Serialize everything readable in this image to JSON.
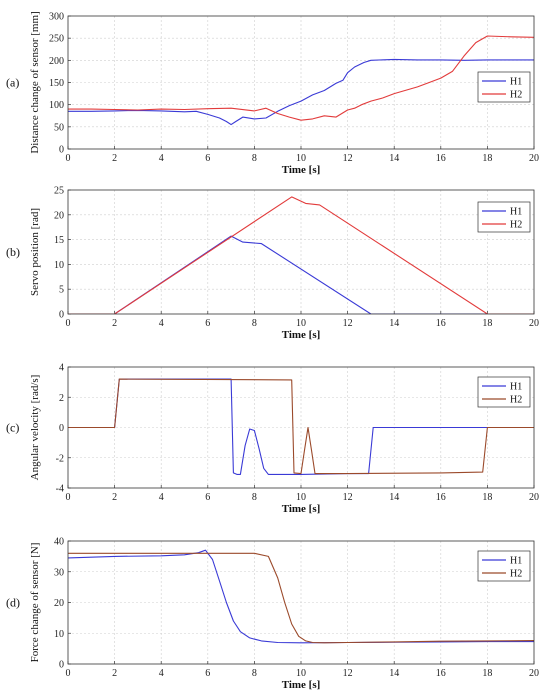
{
  "chart_data": [
    {
      "type": "line",
      "panel_label": "(a)",
      "xlabel": "Time [s]",
      "ylabel": "Distance change of sensor [mm]",
      "xlim": [
        0,
        20
      ],
      "ylim": [
        0,
        300
      ],
      "xticks": [
        "0",
        "2",
        "4",
        "6",
        "8",
        "10",
        "12",
        "14",
        "16",
        "18",
        "20"
      ],
      "yticks": [
        "0",
        "50",
        "100",
        "150",
        "200",
        "250",
        "300"
      ],
      "grid": true,
      "legend_position": "right-middle",
      "series": [
        {
          "name": "H1",
          "color": "#3a3ad6",
          "x": [
            0,
            1,
            2,
            3,
            4,
            5,
            5.5,
            6,
            6.5,
            6.8,
            7.0,
            7.2,
            7.5,
            8.0,
            8.5,
            9.0,
            9.5,
            10.0,
            10.5,
            11.0,
            11.5,
            11.8,
            12.0,
            12.3,
            12.7,
            13.0,
            14.0,
            15.0,
            16.0,
            17.0,
            18.0,
            19.0,
            20.0
          ],
          "y": [
            85,
            85,
            86,
            87,
            86,
            84,
            85,
            78,
            70,
            62,
            55,
            62,
            72,
            68,
            70,
            85,
            98,
            108,
            122,
            132,
            148,
            155,
            172,
            185,
            195,
            200,
            202,
            201,
            201,
            200,
            201,
            201,
            201
          ]
        },
        {
          "name": "H2",
          "color": "#e23b3b",
          "x": [
            0,
            1,
            2,
            3,
            4,
            5,
            6,
            7,
            8,
            8.5,
            9,
            9.5,
            10,
            10.5,
            11,
            11.5,
            12,
            12.3,
            12.6,
            13,
            13.5,
            14,
            15,
            15.5,
            16,
            16.5,
            17,
            17.5,
            18,
            19,
            20
          ],
          "y": [
            90,
            90,
            89,
            88,
            90,
            89,
            91,
            92,
            86,
            92,
            80,
            72,
            65,
            68,
            75,
            72,
            88,
            92,
            100,
            108,
            115,
            125,
            140,
            150,
            160,
            175,
            210,
            240,
            255,
            253,
            252
          ]
        }
      ]
    },
    {
      "type": "line",
      "panel_label": "(b)",
      "xlabel": "Time [s]",
      "ylabel": "Servo position [rad]",
      "xlim": [
        0,
        20
      ],
      "ylim": [
        0,
        25
      ],
      "xticks": [
        "0",
        "2",
        "4",
        "6",
        "8",
        "10",
        "12",
        "14",
        "16",
        "18",
        "20"
      ],
      "yticks": [
        "0",
        "5",
        "10",
        "15",
        "20",
        "25"
      ],
      "grid": true,
      "legend_position": "top-right",
      "series": [
        {
          "name": "H1",
          "color": "#3a3ad6",
          "x": [
            0,
            2,
            7.0,
            7.5,
            8.3,
            13.0,
            20
          ],
          "y": [
            0,
            0,
            15.7,
            14.5,
            14.2,
            0,
            0
          ]
        },
        {
          "name": "H2",
          "color": "#e23b3b",
          "x": [
            0,
            2,
            9.6,
            10.2,
            10.8,
            18.0,
            20
          ],
          "y": [
            0,
            0,
            23.6,
            22.3,
            22.0,
            0,
            0
          ]
        }
      ]
    },
    {
      "type": "line",
      "panel_label": "(c)",
      "xlabel": "Time [s]",
      "ylabel": "Angular velocity [rad/s]",
      "xlim": [
        0,
        20
      ],
      "ylim": [
        -4,
        4
      ],
      "xticks": [
        "0",
        "2",
        "4",
        "6",
        "8",
        "10",
        "12",
        "14",
        "16",
        "18",
        "20"
      ],
      "yticks": [
        "-4",
        "-2",
        "0",
        "2",
        "4"
      ],
      "grid": true,
      "legend_position": "top-right",
      "series": [
        {
          "name": "H1",
          "color": "#3a3ad6",
          "x": [
            0,
            2.0,
            2.2,
            7.0,
            7.1,
            7.25,
            7.4,
            7.6,
            7.8,
            8.0,
            8.2,
            8.4,
            8.6,
            8.8,
            9.0,
            10,
            12,
            12.9,
            13.1,
            20
          ],
          "y": [
            0,
            0,
            3.2,
            3.2,
            -3.0,
            -3.1,
            -3.1,
            -1.2,
            -0.1,
            -0.2,
            -1.4,
            -2.7,
            -3.1,
            -3.1,
            -3.1,
            -3.1,
            -3.05,
            -3.05,
            0,
            0
          ]
        },
        {
          "name": "H2",
          "color": "#9b4a2b",
          "x": [
            0,
            2.0,
            2.2,
            9.6,
            9.7,
            10.0,
            10.15,
            10.3,
            10.45,
            10.6,
            10.7,
            12,
            16,
            17.8,
            18.0,
            20
          ],
          "y": [
            0,
            0,
            3.2,
            3.15,
            -3.0,
            -3.05,
            -1.5,
            0.0,
            -1.5,
            -3.05,
            -3.05,
            -3.05,
            -3.0,
            -2.95,
            0,
            0
          ]
        }
      ]
    },
    {
      "type": "line",
      "panel_label": "(d)",
      "xlabel": "Time [s]",
      "ylabel": "Force change of sensor [N]",
      "xlim": [
        0,
        20
      ],
      "ylim": [
        0,
        40
      ],
      "xticks": [
        "0",
        "2",
        "4",
        "6",
        "8",
        "10",
        "12",
        "14",
        "16",
        "18",
        "20"
      ],
      "yticks": [
        "0",
        "10",
        "20",
        "30",
        "40"
      ],
      "grid": true,
      "legend_position": "top-right",
      "series": [
        {
          "name": "H1",
          "color": "#3a3ad6",
          "x": [
            0,
            2,
            4,
            5,
            5.6,
            5.9,
            6.2,
            6.5,
            6.8,
            7.1,
            7.4,
            7.8,
            8.3,
            9,
            10,
            12,
            14,
            16,
            18,
            20
          ],
          "y": [
            34.5,
            35,
            35.2,
            35.5,
            36.2,
            37,
            34,
            27,
            20,
            14,
            10.5,
            8.5,
            7.5,
            7,
            6.9,
            7,
            7.1,
            7.2,
            7.3,
            7.3
          ]
        },
        {
          "name": "H2",
          "color": "#9b4a2b",
          "x": [
            0,
            2,
            4,
            6,
            8,
            8.6,
            9.0,
            9.3,
            9.6,
            9.9,
            10.2,
            10.5,
            11,
            12,
            14,
            16,
            18,
            20
          ],
          "y": [
            36,
            36,
            36,
            36,
            36,
            35,
            28,
            20,
            13,
            9,
            7.5,
            7,
            6.9,
            7,
            7.2,
            7.4,
            7.5,
            7.6
          ]
        }
      ]
    }
  ]
}
